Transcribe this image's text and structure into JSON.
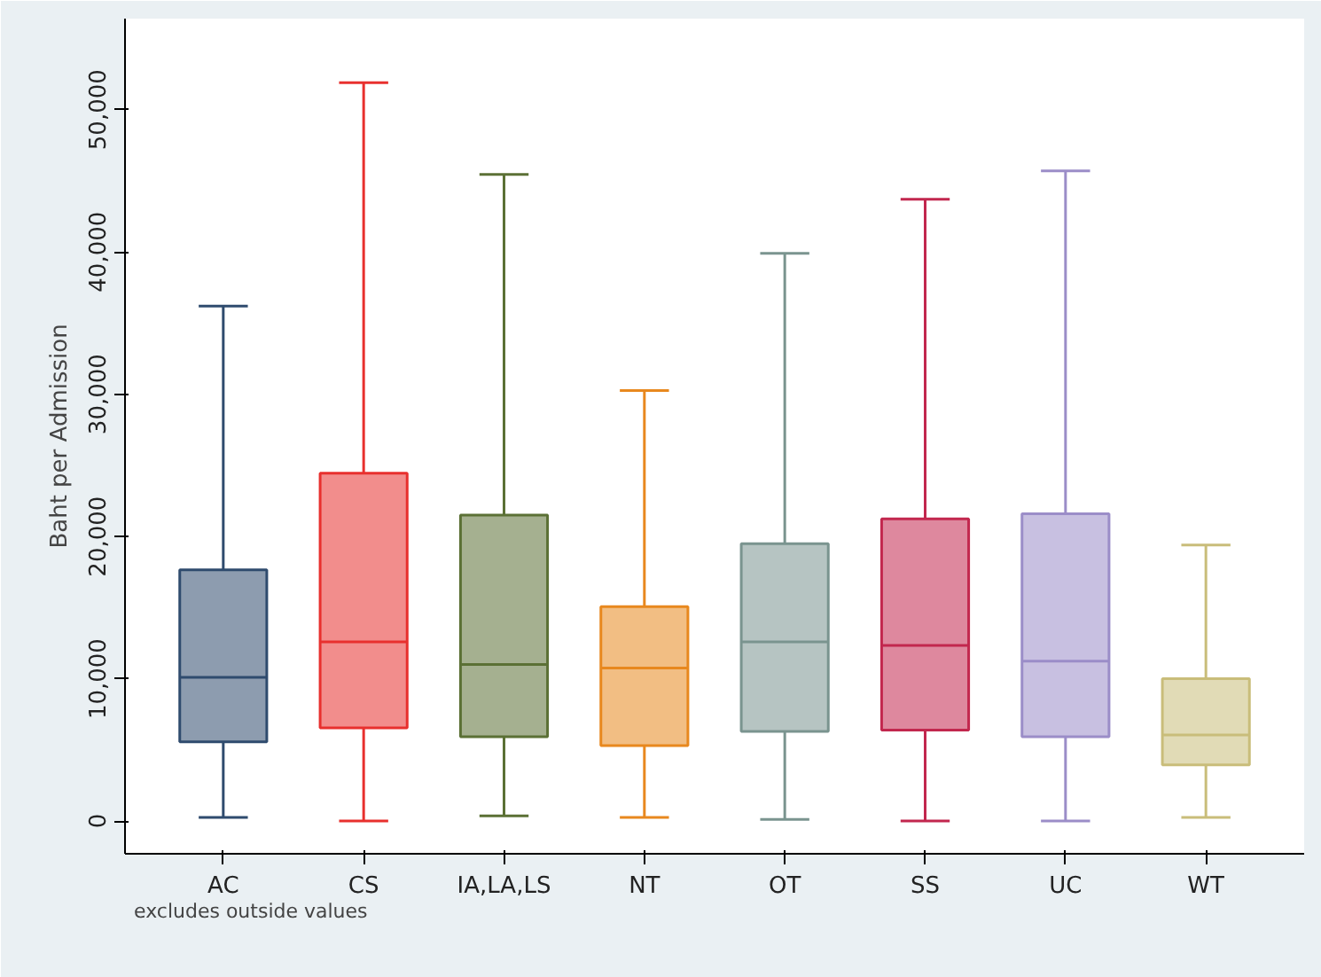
{
  "chart_data": {
    "type": "box",
    "ylabel": "Baht per Admission",
    "annotations": [
      "excludes outside values"
    ],
    "categories": [
      "AC",
      "CS",
      "IA,LA,LS",
      "NT",
      "OT",
      "SS",
      "UC",
      "WT"
    ],
    "colors": [
      "#2f4b6e",
      "#e8302e",
      "#5b7035",
      "#e8881e",
      "#7a948f",
      "#c2274e",
      "#9b8dc8",
      "#c9bd7a"
    ],
    "boxes": [
      {
        "low": 250,
        "q1": 5560,
        "median": 10100,
        "q3": 17660,
        "high": 36200
      },
      {
        "low": 0,
        "q1": 6550,
        "median": 12600,
        "q3": 24450,
        "high": 51900
      },
      {
        "low": 370,
        "q1": 5930,
        "median": 11000,
        "q3": 21500,
        "high": 45450
      },
      {
        "low": 250,
        "q1": 5300,
        "median": 10750,
        "q3": 15070,
        "high": 30260
      },
      {
        "low": 120,
        "q1": 6300,
        "median": 12600,
        "q3": 19500,
        "high": 39900
      },
      {
        "low": 0,
        "q1": 6400,
        "median": 12350,
        "q3": 21240,
        "high": 43700
      },
      {
        "low": 0,
        "q1": 5930,
        "median": 11240,
        "q3": 21600,
        "high": 45700
      },
      {
        "low": 250,
        "q1": 3950,
        "median": 6050,
        "q3": 10000,
        "high": 19400
      }
    ],
    "ylim": [
      -2300,
      56400
    ],
    "yticks": [
      {
        "value": 0,
        "label": "0"
      },
      {
        "value": 10000,
        "label": "10,000"
      },
      {
        "value": 20000,
        "label": "20,000"
      },
      {
        "value": 30000,
        "label": "30,000"
      },
      {
        "value": 40000,
        "label": "40,000"
      },
      {
        "value": 50000,
        "label": "50,000"
      }
    ],
    "grid": false
  }
}
